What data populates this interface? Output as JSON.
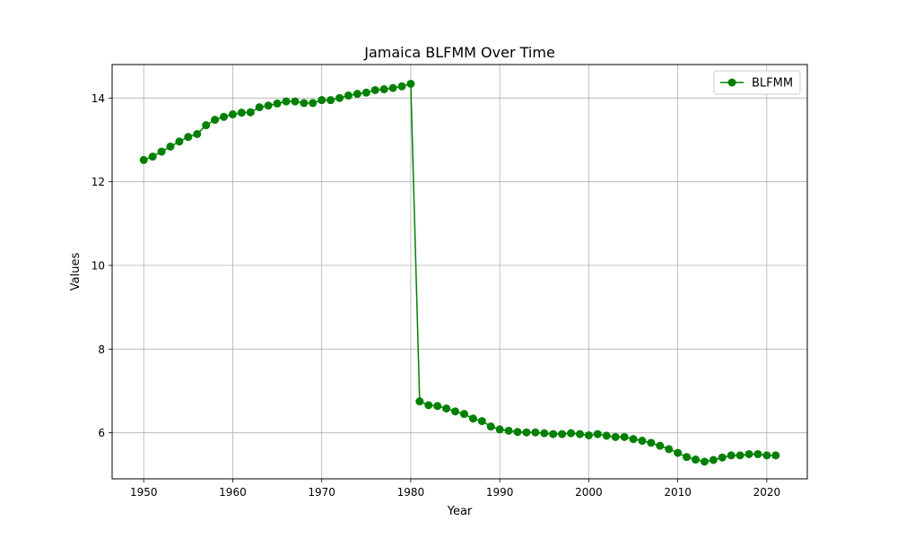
{
  "chart_data": {
    "type": "line",
    "title": "Jamaica BLFMM Over Time",
    "xlabel": "Year",
    "ylabel": "Values",
    "xlim": [
      1946.45,
      2024.55
    ],
    "ylim": [
      4.9,
      14.8
    ],
    "xticks": [
      1950,
      1960,
      1970,
      1980,
      1990,
      2000,
      2010,
      2020
    ],
    "yticks": [
      6,
      8,
      10,
      12,
      14
    ],
    "grid": true,
    "legend": "top-right",
    "series": [
      {
        "name": "BLFMM",
        "color": "#008000",
        "marker": "circle",
        "x": [
          1950,
          1951,
          1952,
          1953,
          1954,
          1955,
          1956,
          1957,
          1958,
          1959,
          1960,
          1961,
          1962,
          1963,
          1964,
          1965,
          1966,
          1967,
          1968,
          1969,
          1970,
          1971,
          1972,
          1973,
          1974,
          1975,
          1976,
          1977,
          1978,
          1979,
          1980,
          1981,
          1982,
          1983,
          1984,
          1985,
          1986,
          1987,
          1988,
          1989,
          1990,
          1991,
          1992,
          1993,
          1994,
          1995,
          1996,
          1997,
          1998,
          1999,
          2000,
          2001,
          2002,
          2003,
          2004,
          2005,
          2006,
          2007,
          2008,
          2009,
          2010,
          2011,
          2012,
          2013,
          2014,
          2015,
          2016,
          2017,
          2018,
          2019,
          2020,
          2021
        ],
        "values": [
          12.52,
          12.6,
          12.72,
          12.84,
          12.96,
          13.07,
          13.14,
          13.35,
          13.48,
          13.55,
          13.61,
          13.65,
          13.66,
          13.78,
          13.82,
          13.87,
          13.92,
          13.92,
          13.88,
          13.88,
          13.95,
          13.95,
          14.0,
          14.06,
          14.1,
          14.13,
          14.19,
          14.21,
          14.24,
          14.28,
          14.34,
          6.75,
          6.66,
          6.64,
          6.58,
          6.51,
          6.45,
          6.34,
          6.28,
          6.15,
          6.08,
          6.05,
          6.02,
          6.01,
          6.01,
          5.99,
          5.97,
          5.97,
          5.99,
          5.97,
          5.94,
          5.97,
          5.93,
          5.9,
          5.9,
          5.85,
          5.81,
          5.76,
          5.69,
          5.61,
          5.52,
          5.42,
          5.36,
          5.31,
          5.35,
          5.41,
          5.46,
          5.46,
          5.49,
          5.49,
          5.46,
          5.46
        ]
      }
    ]
  }
}
